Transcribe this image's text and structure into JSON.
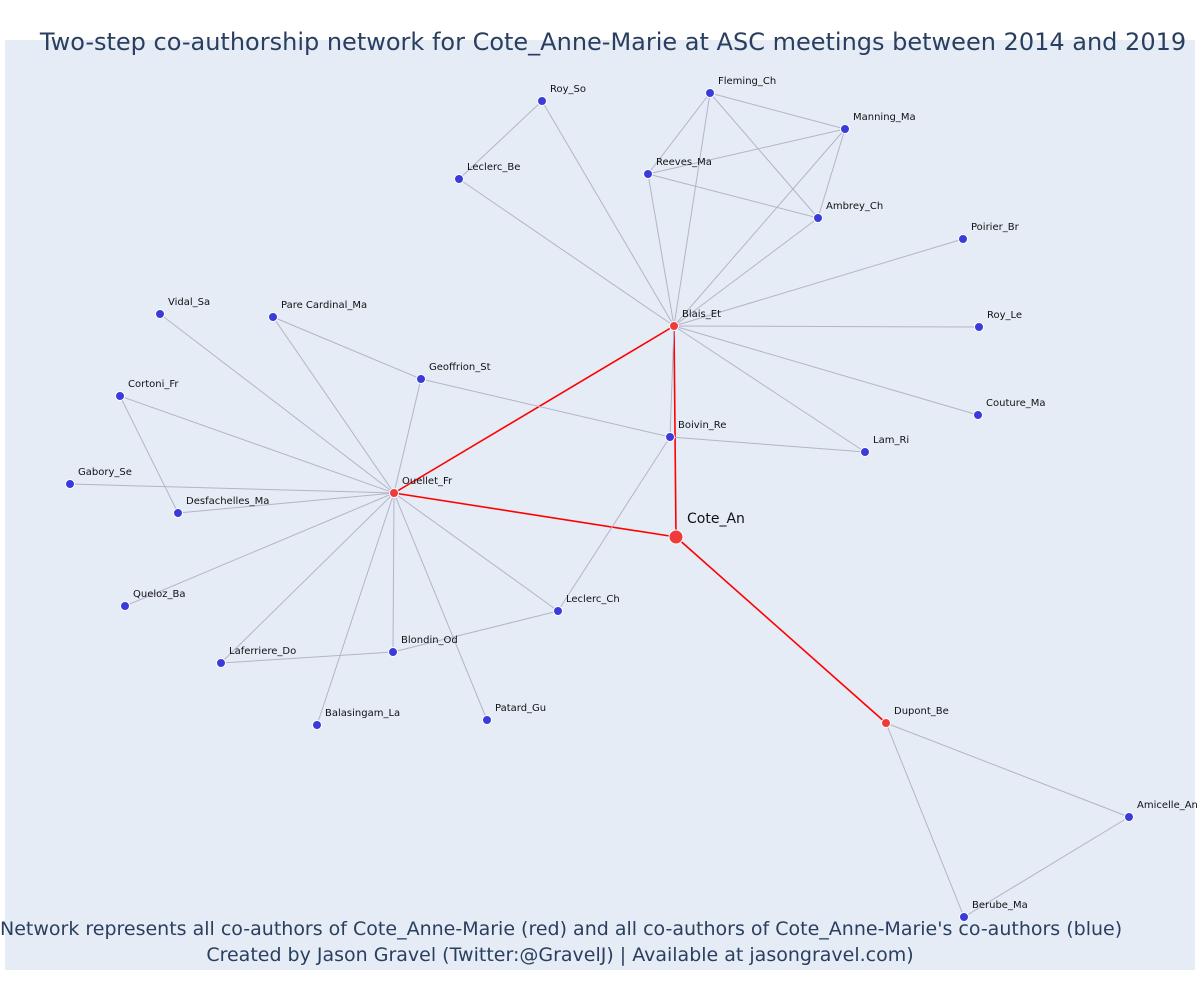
{
  "title": "Two-step co-authorship network for Cote_Anne-Marie at ASC meetings between 2014 and 2019",
  "caption_line1": "Network represents all co-authors of Cote_Anne-Marie (red) and all co-authors of Cote_Anne-Marie's co-authors (blue)",
  "caption_line2": "Created by Jason Gravel (Twitter:@GravelJ) | Available at jasongravel.com)",
  "colors": {
    "plot_background": "#e5ecf6",
    "center_node": "#ef3b3b",
    "coauthor_node": "#ef3b3b",
    "second_step_node": "#3b3bdb",
    "red_edge": "#ff0000",
    "grey_edge": "#b4b4c8",
    "text": "#2a3f5f"
  },
  "network": {
    "center": "Cote_An",
    "nodes": [
      {
        "id": "Cote_An",
        "label": "Cote_An",
        "group": "center"
      },
      {
        "id": "Blais_Et",
        "label": "Blais_Et",
        "group": "coauthor"
      },
      {
        "id": "Ouellet_Fr",
        "label": "Ouellet_Fr",
        "group": "coauthor"
      },
      {
        "id": "Dupont_Be",
        "label": "Dupont_Be",
        "group": "coauthor"
      },
      {
        "id": "Roy_So",
        "label": "Roy_So",
        "group": "second"
      },
      {
        "id": "Leclerc_Be",
        "label": "Leclerc_Be",
        "group": "second"
      },
      {
        "id": "Fleming_Ch",
        "label": "Fleming_Ch",
        "group": "second"
      },
      {
        "id": "Manning_Ma",
        "label": "Manning_Ma",
        "group": "second"
      },
      {
        "id": "Reeves_Ma",
        "label": "Reeves_Ma",
        "group": "second"
      },
      {
        "id": "Ambrey_Ch",
        "label": "Ambrey_Ch",
        "group": "second"
      },
      {
        "id": "Poirier_Br",
        "label": "Poirier_Br",
        "group": "second"
      },
      {
        "id": "Roy_Le",
        "label": "Roy_Le",
        "group": "second"
      },
      {
        "id": "Couture_Ma",
        "label": "Couture_Ma",
        "group": "second"
      },
      {
        "id": "Lam_Ri",
        "label": "Lam_Ri",
        "group": "second"
      },
      {
        "id": "Boivin_Re",
        "label": "Boivin_Re",
        "group": "second"
      },
      {
        "id": "Geoffrion_St",
        "label": "Geoffrion_St",
        "group": "second"
      },
      {
        "id": "Pare Cardinal_Ma",
        "label": "Pare Cardinal_Ma",
        "group": "second"
      },
      {
        "id": "Vidal_Sa",
        "label": "Vidal_Sa",
        "group": "second"
      },
      {
        "id": "Cortoni_Fr",
        "label": "Cortoni_Fr",
        "group": "second"
      },
      {
        "id": "Gabory_Se",
        "label": "Gabory_Se",
        "group": "second"
      },
      {
        "id": "Desfachelles_Ma",
        "label": "Desfachelles_Ma",
        "group": "second"
      },
      {
        "id": "Queloz_Ba",
        "label": "Queloz_Ba",
        "group": "second"
      },
      {
        "id": "Laferriere_Do",
        "label": "Laferriere_Do",
        "group": "second"
      },
      {
        "id": "Blondin_Od",
        "label": "Blondin_Od",
        "group": "second"
      },
      {
        "id": "Balasingam_La",
        "label": "Balasingam_La",
        "group": "second"
      },
      {
        "id": "Patard_Gu",
        "label": "Patard_Gu",
        "group": "second"
      },
      {
        "id": "Leclerc_Ch",
        "label": "Leclerc_Ch",
        "group": "second"
      },
      {
        "id": "Amicelle_An",
        "label": "Amicelle_An",
        "group": "second"
      },
      {
        "id": "Berube_Ma",
        "label": "Berube_Ma",
        "group": "second"
      }
    ],
    "edges": [
      [
        "Cote_An",
        "Blais_Et"
      ],
      [
        "Cote_An",
        "Ouellet_Fr"
      ],
      [
        "Cote_An",
        "Dupont_Be"
      ],
      [
        "Blais_Et",
        "Ouellet_Fr"
      ],
      [
        "Roy_So",
        "Leclerc_Be"
      ],
      [
        "Roy_So",
        "Blais_Et"
      ],
      [
        "Leclerc_Be",
        "Blais_Et"
      ],
      [
        "Fleming_Ch",
        "Manning_Ma"
      ],
      [
        "Fleming_Ch",
        "Reeves_Ma"
      ],
      [
        "Fleming_Ch",
        "Ambrey_Ch"
      ],
      [
        "Fleming_Ch",
        "Blais_Et"
      ],
      [
        "Manning_Ma",
        "Reeves_Ma"
      ],
      [
        "Manning_Ma",
        "Ambrey_Ch"
      ],
      [
        "Manning_Ma",
        "Blais_Et"
      ],
      [
        "Reeves_Ma",
        "Ambrey_Ch"
      ],
      [
        "Reeves_Ma",
        "Blais_Et"
      ],
      [
        "Ambrey_Ch",
        "Blais_Et"
      ],
      [
        "Poirier_Br",
        "Blais_Et"
      ],
      [
        "Roy_Le",
        "Blais_Et"
      ],
      [
        "Couture_Ma",
        "Blais_Et"
      ],
      [
        "Lam_Ri",
        "Blais_Et"
      ],
      [
        "Boivin_Re",
        "Blais_Et"
      ],
      [
        "Boivin_Re",
        "Lam_Ri"
      ],
      [
        "Boivin_Re",
        "Geoffrion_St"
      ],
      [
        "Boivin_Re",
        "Leclerc_Ch"
      ],
      [
        "Geoffrion_St",
        "Pare Cardinal_Ma"
      ],
      [
        "Geoffrion_St",
        "Ouellet_Fr"
      ],
      [
        "Pare Cardinal_Ma",
        "Ouellet_Fr"
      ],
      [
        "Vidal_Sa",
        "Ouellet_Fr"
      ],
      [
        "Cortoni_Fr",
        "Ouellet_Fr"
      ],
      [
        "Cortoni_Fr",
        "Desfachelles_Ma"
      ],
      [
        "Gabory_Se",
        "Ouellet_Fr"
      ],
      [
        "Desfachelles_Ma",
        "Ouellet_Fr"
      ],
      [
        "Queloz_Ba",
        "Ouellet_Fr"
      ],
      [
        "Laferriere_Do",
        "Ouellet_Fr"
      ],
      [
        "Laferriere_Do",
        "Blondin_Od"
      ],
      [
        "Blondin_Od",
        "Ouellet_Fr"
      ],
      [
        "Blondin_Od",
        "Leclerc_Ch"
      ],
      [
        "Balasingam_La",
        "Ouellet_Fr"
      ],
      [
        "Patard_Gu",
        "Ouellet_Fr"
      ],
      [
        "Leclerc_Ch",
        "Ouellet_Fr"
      ],
      [
        "Dupont_Be",
        "Amicelle_An"
      ],
      [
        "Dupont_Be",
        "Berube_Ma"
      ],
      [
        "Amicelle_An",
        "Berube_Ma"
      ]
    ]
  }
}
